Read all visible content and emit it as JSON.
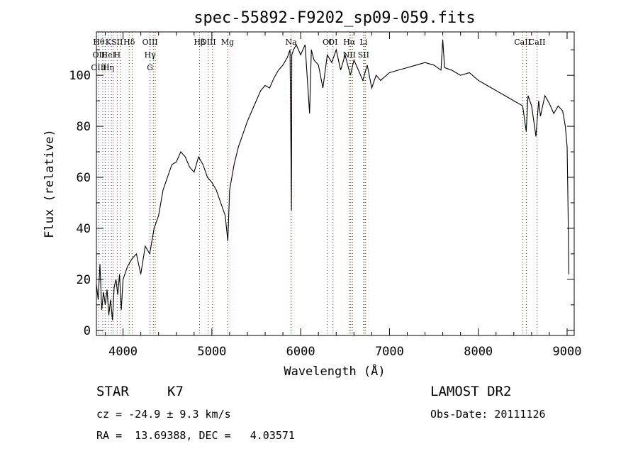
{
  "chart_data": {
    "type": "line",
    "title": "spec-55892-F9202_sp09-059.fits",
    "xlabel": "Wavelength (Å)",
    "ylabel": "Flux (relative)",
    "xlim": [
      3700,
      9080
    ],
    "ylim": [
      -2,
      117
    ],
    "x_ticks": [
      4000,
      5000,
      6000,
      7000,
      8000,
      9000
    ],
    "y_ticks": [
      0,
      20,
      40,
      60,
      80,
      100
    ],
    "line_color": "#000000",
    "marker_color": "#cc0000",
    "series": [
      {
        "x": [
          3700,
          3720,
          3740,
          3760,
          3780,
          3800,
          3820,
          3840,
          3860,
          3880,
          3900,
          3920,
          3940,
          3960,
          3980,
          4000,
          4050,
          4100,
          4150,
          4200,
          4250,
          4300,
          4350,
          4400,
          4450,
          4500,
          4550,
          4600,
          4650,
          4700,
          4750,
          4800,
          4850,
          4900,
          4950,
          5000,
          5050,
          5100,
          5150,
          5180,
          5200,
          5250,
          5300,
          5350,
          5400,
          5450,
          5500,
          5550,
          5600,
          5650,
          5700,
          5750,
          5800,
          5850,
          5880,
          5890,
          5896,
          5900,
          5920,
          5950,
          6000,
          6050,
          6100,
          6120,
          6150,
          6200,
          6250,
          6300,
          6350,
          6400,
          6450,
          6500,
          6560,
          6600,
          6650,
          6700,
          6750,
          6800,
          6850,
          6900,
          7000,
          7100,
          7200,
          7300,
          7400,
          7500,
          7580,
          7600,
          7620,
          7700,
          7800,
          7900,
          8000,
          8100,
          8200,
          8300,
          8400,
          8500,
          8540,
          8560,
          8600,
          8650,
          8662,
          8680,
          8700,
          8750,
          8800,
          8850,
          8900,
          8950,
          8980,
          9000,
          9010,
          9020
        ],
        "y": [
          18,
          12,
          26,
          8,
          15,
          10,
          16,
          6,
          12,
          4,
          17,
          20,
          14,
          22,
          8,
          20,
          25,
          28,
          30,
          22,
          33,
          30,
          40,
          45,
          55,
          60,
          65,
          66,
          70,
          68,
          64,
          62,
          68,
          65,
          60,
          58,
          55,
          50,
          45,
          35,
          55,
          65,
          72,
          77,
          82,
          86,
          90,
          94,
          96,
          95,
          99,
          102,
          104,
          107,
          110,
          72,
          47,
          108,
          110,
          112,
          108,
          112,
          85,
          110,
          106,
          104,
          95,
          108,
          105,
          110,
          102,
          108,
          100,
          106,
          102,
          98,
          104,
          95,
          100,
          98,
          101,
          102,
          103,
          104,
          105,
          104,
          102,
          114,
          103,
          102,
          100,
          101,
          98,
          96,
          94,
          92,
          90,
          88,
          78,
          92,
          88,
          76,
          82,
          90,
          84,
          92,
          89,
          85,
          88,
          86,
          80,
          72,
          50,
          22
        ]
      }
    ],
    "lines": [
      {
        "labels": [
          "Hθ",
          "OII",
          "OIII"
        ],
        "x": [
          3727,
          3771,
          3798
        ]
      },
      {
        "labels": [
          "K",
          "HeI",
          "Hη"
        ],
        "x": [
          3835,
          3869,
          3889
        ]
      },
      {
        "labels": [
          "SII",
          "H"
        ],
        "x": [
          3934,
          3968
        ]
      },
      {
        "labels": [
          "Hδ"
        ],
        "x": [
          4069,
          4102
        ]
      },
      {
        "labels": [
          "OIII",
          "Hγ",
          "G"
        ],
        "x": [
          4304,
          4341,
          4363
        ]
      },
      {
        "labels": [
          "Hβ"
        ],
        "x": [
          4861
        ]
      },
      {
        "labels": [
          "OIII"
        ],
        "x": [
          4959,
          5007
        ]
      },
      {
        "labels": [
          "Mg"
        ],
        "x": [
          5177
        ]
      },
      {
        "labels": [
          "Na"
        ],
        "x": [
          5892
        ]
      },
      {
        "labels": [
          "OI"
        ],
        "x": [
          6300
        ]
      },
      {
        "labels": [
          "OI"
        ],
        "x": [
          6364
        ]
      },
      {
        "labels": [
          "Hα",
          "NII"
        ],
        "x": [
          6548,
          6563,
          6583
        ]
      },
      {
        "labels": [
          "Li",
          "SII"
        ],
        "x": [
          6708,
          6716,
          6731
        ]
      },
      {
        "labels": [
          "CaII"
        ],
        "x": [
          8498,
          8542
        ]
      },
      {
        "labels": [
          "CaII"
        ],
        "x": [
          8662
        ]
      }
    ]
  },
  "info": {
    "class_label": "STAR",
    "subclass": "K7",
    "survey": "LAMOST DR2",
    "cz": "cz = -24.9 ± 9.3 km/s",
    "obs_date": "Obs-Date: 20111126",
    "coords": "RA =  13.69388, DEC =   4.03571"
  }
}
